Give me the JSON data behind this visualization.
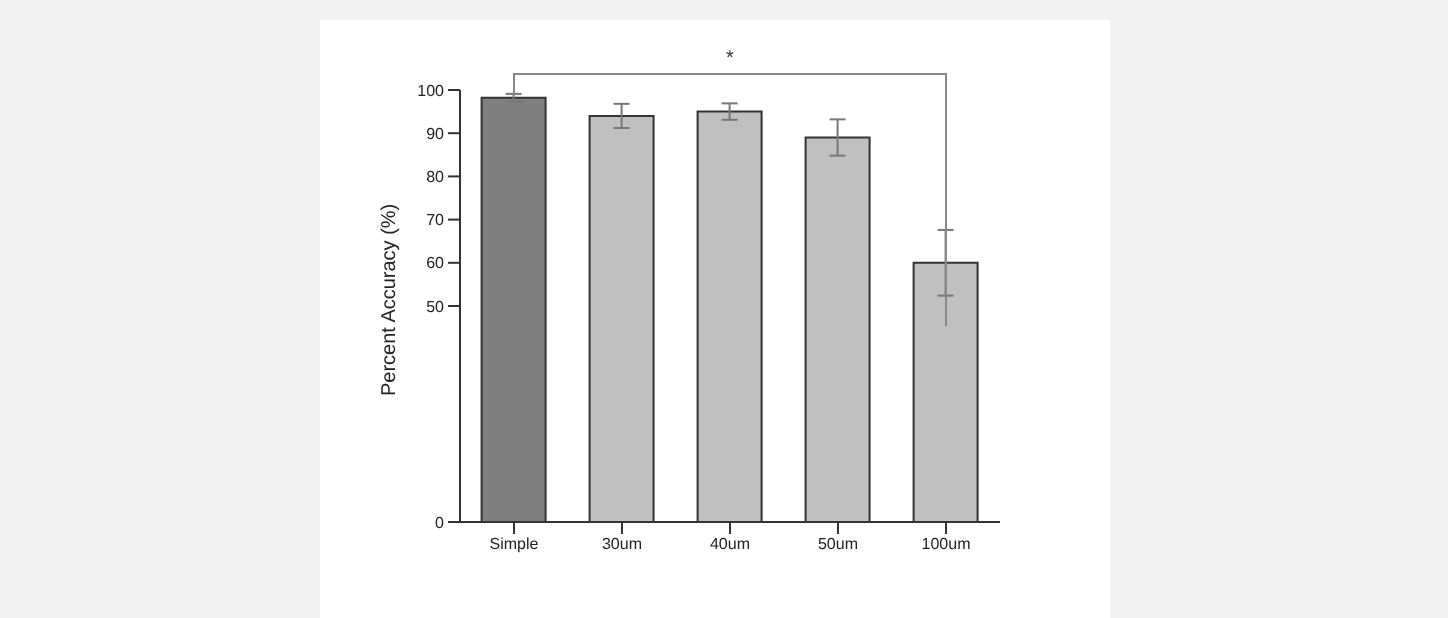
{
  "chart_data": {
    "type": "bar",
    "ylabel": "Percent Accuracy (%)",
    "categories": [
      "Simple",
      "30um",
      "40um",
      "50um",
      "100um"
    ],
    "values": [
      98.2,
      94.0,
      95.0,
      89.0,
      60.0
    ],
    "colors": [
      "#7f7f7f",
      "#c0c0c0",
      "#c0c0c0",
      "#c0c0c0",
      "#c0c0c0"
    ],
    "errors": [
      0.9,
      2.8,
      1.9,
      4.2,
      7.6
    ],
    "ylim": [
      0,
      100
    ],
    "yticks": [
      0,
      50,
      60,
      70,
      80,
      90,
      100
    ],
    "annotations": [
      "*"
    ]
  }
}
